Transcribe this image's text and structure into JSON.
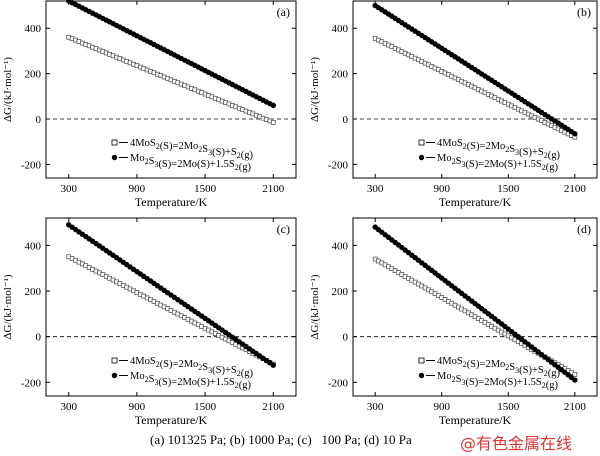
{
  "caption": "(a) 101325 Pa; (b) 1000 Pa; (c)   100 Pa; (d) 10 Pa",
  "watermark": "@有色金属在线",
  "chart_data": [
    {
      "type": "line",
      "panel_label": "(a)",
      "xlabel": "Temperature/K",
      "ylabel": "ΔG/(kJ·mol⁻¹)",
      "xlim": [
        100,
        2300
      ],
      "ylim": [
        -260,
        520
      ],
      "xticks": [
        300,
        900,
        1500,
        2100
      ],
      "yticks": [
        -200,
        0,
        200,
        400
      ],
      "legend_position": "lower-left",
      "zero_line": "dashed",
      "series": [
        {
          "name": "4MoS2(S)=2Mo2S3(S)+S2(g)",
          "label_main": "4MoS",
          "label_rest": "(S)=2Mo",
          "marker": "open-square",
          "x": [
            300,
            2100
          ],
          "y": [
            360,
            -15
          ]
        },
        {
          "name": "Mo2S3(S)=2Mo(S)+1.5S2(g)",
          "label_main": "Mo",
          "label_rest": "S",
          "marker": "filled-circle",
          "x": [
            300,
            2100
          ],
          "y": [
            520,
            60
          ]
        }
      ]
    },
    {
      "type": "line",
      "panel_label": "(b)",
      "xlabel": "Temperature/K",
      "ylabel": "ΔG/(kJ·mol⁻¹)",
      "xlim": [
        100,
        2300
      ],
      "ylim": [
        -260,
        520
      ],
      "xticks": [
        300,
        900,
        1500,
        2100
      ],
      "yticks": [
        -200,
        0,
        200,
        400
      ],
      "legend_position": "lower-left",
      "zero_line": "dashed",
      "series": [
        {
          "name": "4MoS2(S)=2Mo2S3(S)+S2(g)",
          "marker": "open-square",
          "x": [
            300,
            2100
          ],
          "y": [
            355,
            -80
          ]
        },
        {
          "name": "Mo2S3(S)=2Mo(S)+1.5S2(g)",
          "marker": "filled-circle",
          "x": [
            300,
            2100
          ],
          "y": [
            500,
            -65
          ]
        }
      ]
    },
    {
      "type": "line",
      "panel_label": "(c)",
      "xlabel": "Temperature/K",
      "ylabel": "ΔG/(kJ·mol⁻¹)",
      "xlim": [
        100,
        2300
      ],
      "ylim": [
        -260,
        520
      ],
      "xticks": [
        300,
        900,
        1500,
        2100
      ],
      "yticks": [
        -200,
        0,
        200,
        400
      ],
      "legend_position": "lower-left",
      "zero_line": "dashed",
      "series": [
        {
          "name": "4MoS2(S)=2Mo2S3(S)+S2(g)",
          "marker": "open-square",
          "x": [
            300,
            2100
          ],
          "y": [
            350,
            -120
          ]
        },
        {
          "name": "Mo2S3(S)=2Mo(S)+1.5S2(g)",
          "marker": "filled-circle",
          "x": [
            300,
            2100
          ],
          "y": [
            490,
            -125
          ]
        }
      ]
    },
    {
      "type": "line",
      "panel_label": "(d)",
      "xlabel": "Temperature/K",
      "ylabel": "ΔG/(kJ·mol⁻¹)",
      "xlim": [
        100,
        2300
      ],
      "ylim": [
        -260,
        520
      ],
      "xticks": [
        300,
        900,
        1500,
        2100
      ],
      "yticks": [
        -200,
        0,
        200,
        400
      ],
      "legend_position": "lower-left",
      "zero_line": "dashed",
      "series": [
        {
          "name": "4MoS2(S)=2Mo2S3(S)+S2(g)",
          "marker": "open-square",
          "x": [
            300,
            2100
          ],
          "y": [
            340,
            -165
          ]
        },
        {
          "name": "Mo2S3(S)=2Mo(S)+1.5S2(g)",
          "marker": "filled-circle",
          "x": [
            300,
            2100
          ],
          "y": [
            480,
            -190
          ]
        }
      ]
    }
  ]
}
